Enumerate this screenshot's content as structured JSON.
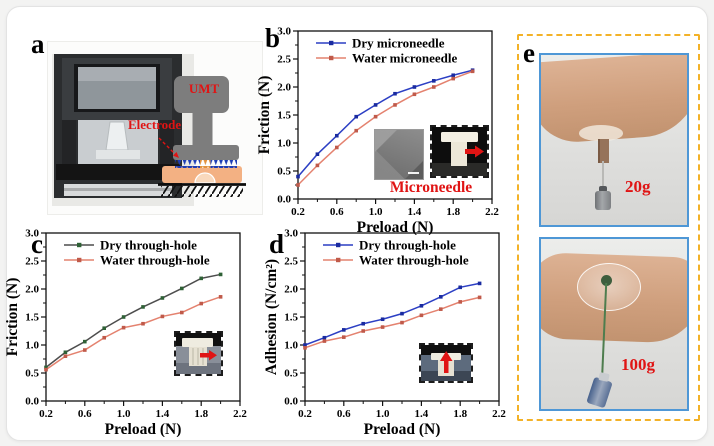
{
  "figure": {
    "panels": {
      "a": {
        "letter": "a",
        "schematic": {
          "umt_label": "UMT",
          "electrode_label": "Electrode"
        }
      },
      "b": {
        "letter": "b"
      },
      "c": {
        "letter": "c"
      },
      "d": {
        "letter": "d"
      },
      "e": {
        "letter": "e",
        "weight_top": "20g",
        "weight_bottom": "100g"
      }
    },
    "colors": {
      "accent_red": "#e01414",
      "dashed_frame_yellow": "#f3b228",
      "photo_border_blue": "#4e97d6",
      "skin": "#f3b183",
      "dry_blue_line": "#2c3fc4",
      "water_salmon_line": "#e4826f",
      "dry_dark_line": "#4d4d4d"
    }
  },
  "chart_data": [
    {
      "id": "b",
      "type": "line",
      "xlabel": "Preload (N)",
      "ylabel": "Friction (N)",
      "xlim": [
        0.2,
        2.2
      ],
      "ylim": [
        0.0,
        3.0
      ],
      "xticks": [
        0.2,
        0.6,
        1.0,
        1.4,
        1.8,
        2.2
      ],
      "xminor": [
        0.4,
        0.8,
        1.2,
        1.6,
        2.0
      ],
      "yticks": [
        0.0,
        0.5,
        1.0,
        1.5,
        2.0,
        2.5,
        3.0
      ],
      "yminor": [
        0.25,
        0.75,
        1.25,
        1.75,
        2.25,
        2.75
      ],
      "grid": false,
      "legend_position": "top-left",
      "x": [
        0.2,
        0.4,
        0.6,
        0.8,
        1.0,
        1.2,
        1.4,
        1.6,
        1.8,
        2.0
      ],
      "series": [
        {
          "name": "Dry microneedle",
          "color": "#2c3fc4",
          "marker": "#1a2ba0",
          "values": [
            0.4,
            0.8,
            1.13,
            1.47,
            1.68,
            1.88,
            2.0,
            2.11,
            2.21,
            2.3
          ]
        },
        {
          "name": "Water microneedle",
          "color": "#e4826f",
          "marker": "#c05a4a",
          "values": [
            0.25,
            0.6,
            0.92,
            1.22,
            1.47,
            1.68,
            1.87,
            2.0,
            2.15,
            2.28
          ]
        }
      ],
      "inset_caption": "Microneedle"
    },
    {
      "id": "c",
      "type": "line",
      "xlabel": "Preload (N)",
      "ylabel": "Friction (N)",
      "xlim": [
        0.2,
        2.2
      ],
      "ylim": [
        0.0,
        3.0
      ],
      "xticks": [
        0.2,
        0.6,
        1.0,
        1.4,
        1.8,
        2.2
      ],
      "xminor": [
        0.4,
        0.8,
        1.2,
        1.6,
        2.0
      ],
      "yticks": [
        0.0,
        0.5,
        1.0,
        1.5,
        2.0,
        2.5,
        3.0
      ],
      "yminor": [
        0.25,
        0.75,
        1.25,
        1.75,
        2.25,
        2.75
      ],
      "grid": false,
      "legend_position": "top-left",
      "x": [
        0.2,
        0.4,
        0.6,
        0.8,
        1.0,
        1.2,
        1.4,
        1.6,
        1.8,
        2.0
      ],
      "series": [
        {
          "name": "Dry through-hole",
          "color": "#4d4d4d",
          "marker": "#2f6136",
          "values": [
            0.6,
            0.87,
            1.06,
            1.3,
            1.5,
            1.68,
            1.84,
            2.01,
            2.19,
            2.26
          ]
        },
        {
          "name": "Water through-hole",
          "color": "#e4826f",
          "marker": "#c05a4a",
          "values": [
            0.56,
            0.8,
            0.91,
            1.13,
            1.31,
            1.38,
            1.51,
            1.58,
            1.74,
            1.86
          ]
        }
      ],
      "inset_caption": ""
    },
    {
      "id": "d",
      "type": "line",
      "xlabel": "Preload (N)",
      "ylabel": "Adhesion (N/cm²)",
      "xlim": [
        0.2,
        2.2
      ],
      "ylim": [
        0.0,
        3.0
      ],
      "xticks": [
        0.2,
        0.6,
        1.0,
        1.4,
        1.8,
        2.2
      ],
      "xminor": [
        0.4,
        0.8,
        1.2,
        1.6,
        2.0
      ],
      "yticks": [
        0.0,
        0.5,
        1.0,
        1.5,
        2.0,
        2.5,
        3.0
      ],
      "yminor": [
        0.25,
        0.75,
        1.25,
        1.75,
        2.25,
        2.75
      ],
      "grid": false,
      "legend_position": "top-left",
      "x": [
        0.2,
        0.4,
        0.6,
        0.8,
        1.0,
        1.2,
        1.4,
        1.6,
        1.8,
        2.0
      ],
      "series": [
        {
          "name": "Dry through-hole",
          "color": "#2c3fc4",
          "marker": "#1a2ba0",
          "values": [
            1.0,
            1.13,
            1.27,
            1.38,
            1.46,
            1.56,
            1.7,
            1.86,
            2.03,
            2.1
          ]
        },
        {
          "name": "Water through-hole",
          "color": "#e4826f",
          "marker": "#c05a4a",
          "values": [
            0.95,
            1.07,
            1.14,
            1.25,
            1.32,
            1.4,
            1.53,
            1.64,
            1.77,
            1.85
          ]
        }
      ],
      "inset_caption": ""
    }
  ]
}
